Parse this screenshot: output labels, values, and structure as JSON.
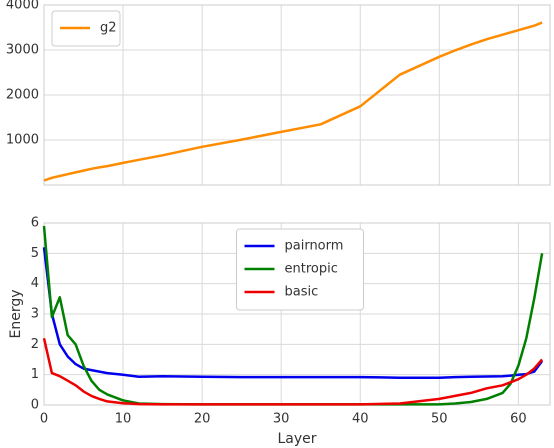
{
  "chart_data": [
    {
      "type": "line",
      "x": [
        0,
        1,
        2,
        3,
        4,
        5,
        6,
        7,
        8,
        10,
        12,
        15,
        20,
        25,
        30,
        35,
        40,
        45,
        50,
        52,
        54,
        56,
        58,
        59,
        60,
        61,
        62,
        63
      ],
      "series": [
        {
          "name": "g2",
          "color": "#ff8c00",
          "values": [
            100,
            160,
            200,
            240,
            280,
            320,
            360,
            390,
            420,
            490,
            560,
            660,
            850,
            1010,
            1180,
            1350,
            1750,
            2450,
            2850,
            2990,
            3120,
            3240,
            3340,
            3390,
            3440,
            3490,
            3540,
            3610
          ]
        }
      ],
      "xlim": [
        0,
        64
      ],
      "xticks": [
        0,
        10,
        20,
        30,
        40,
        50,
        60
      ],
      "show_xtick_labels": false,
      "ylim": [
        0,
        4000
      ],
      "yticks": [
        1000,
        2000,
        3000,
        4000
      ],
      "grid": true,
      "legend": "upper left"
    },
    {
      "type": "line",
      "x": [
        0,
        1,
        2,
        3,
        4,
        5,
        6,
        7,
        8,
        10,
        12,
        15,
        20,
        25,
        30,
        35,
        40,
        45,
        50,
        52,
        54,
        56,
        58,
        59,
        60,
        61,
        62,
        63
      ],
      "series": [
        {
          "name": "pairnorm",
          "color": "#0000ee",
          "values": [
            5.2,
            3.0,
            2.0,
            1.6,
            1.35,
            1.2,
            1.15,
            1.1,
            1.05,
            1.0,
            0.93,
            0.95,
            0.93,
            0.92,
            0.92,
            0.92,
            0.92,
            0.9,
            0.9,
            0.92,
            0.93,
            0.94,
            0.95,
            0.97,
            1.0,
            1.02,
            1.1,
            1.45
          ]
        },
        {
          "name": "entropic",
          "color": "#008000",
          "values": [
            5.9,
            2.9,
            3.55,
            2.3,
            2.0,
            1.3,
            0.8,
            0.5,
            0.35,
            0.15,
            0.05,
            0.03,
            0.02,
            0.02,
            0.02,
            0.02,
            0.02,
            0.02,
            0.02,
            0.05,
            0.1,
            0.2,
            0.4,
            0.7,
            1.3,
            2.2,
            3.5,
            5.0
          ]
        },
        {
          "name": "basic",
          "color": "#ee0000",
          "values": [
            2.2,
            1.05,
            0.95,
            0.8,
            0.65,
            0.45,
            0.3,
            0.2,
            0.12,
            0.06,
            0.03,
            0.02,
            0.02,
            0.02,
            0.02,
            0.02,
            0.02,
            0.05,
            0.2,
            0.3,
            0.4,
            0.55,
            0.65,
            0.75,
            0.85,
            1.0,
            1.2,
            1.5
          ]
        }
      ],
      "xlim": [
        0,
        64
      ],
      "xticks": [
        0,
        10,
        20,
        30,
        40,
        50,
        60
      ],
      "show_xtick_labels": true,
      "ylim": [
        0,
        6
      ],
      "yticks": [
        0,
        1,
        2,
        3,
        4,
        5,
        6
      ],
      "grid": true,
      "legend": "upper center",
      "xlabel": "Layer",
      "ylabel": "Energy"
    }
  ]
}
